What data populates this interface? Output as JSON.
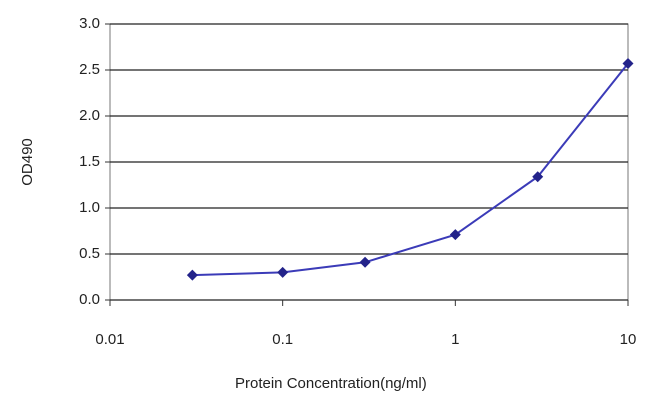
{
  "chart_data": {
    "type": "line",
    "x": [
      0.03,
      0.1,
      0.3,
      1,
      3,
      10
    ],
    "series": [
      {
        "name": "OD490",
        "color": "#3b3bb8",
        "marker_color": "#23238a",
        "values": [
          0.27,
          0.3,
          0.41,
          0.71,
          1.34,
          2.57
        ]
      }
    ],
    "xlabel": "Protein Concentration(ng/ml)",
    "ylabel": "OD490",
    "xscale": "log",
    "xlim": [
      0.01,
      10
    ],
    "xticks": [
      0.01,
      0.1,
      1,
      10
    ],
    "ylim": [
      0,
      3
    ],
    "yticks": [
      {
        "value": 0,
        "label": "0.0"
      },
      0.5,
      {
        "value": 1,
        "label": "1.0"
      },
      1.5,
      {
        "value": 2,
        "label": "2.0"
      },
      2.5,
      {
        "value": 3,
        "label": "3.0"
      }
    ],
    "grid": true
  }
}
